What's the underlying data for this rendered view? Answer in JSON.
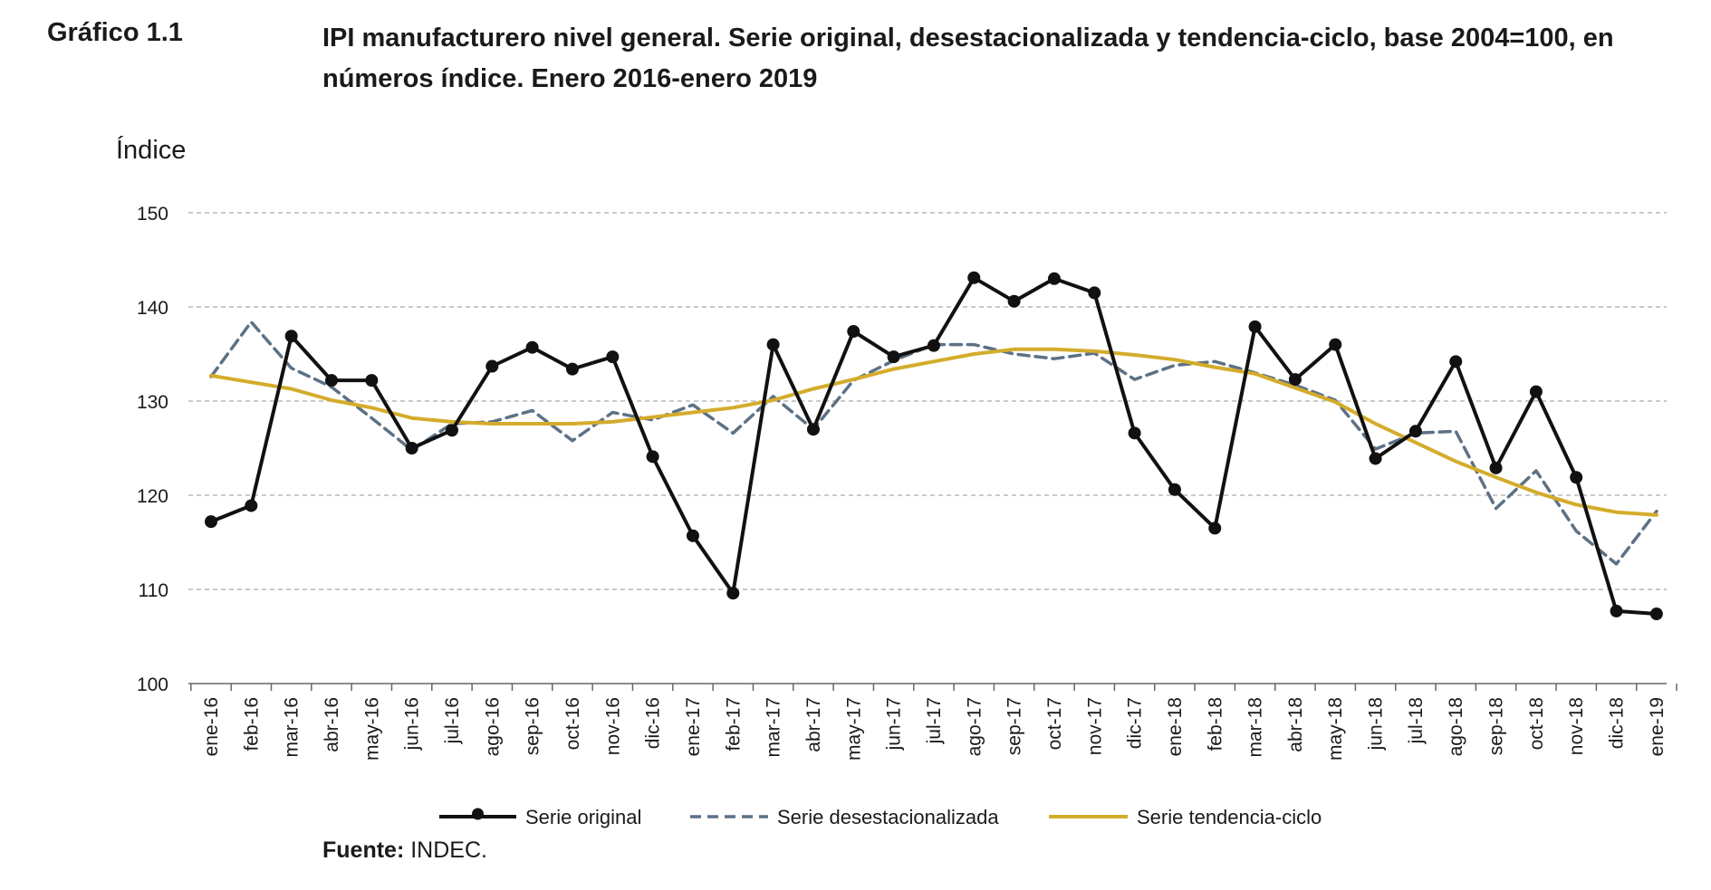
{
  "header": {
    "label": "Gráfico 1.1",
    "title_line1": "IPI manufacturero nivel general. Serie original, desestacionalizada y tendencia-ciclo, base 2004=100, en",
    "title_line2": "números índice. Enero 2016-enero 2019"
  },
  "footer": {
    "source_label": "Fuente:",
    "source_value": " INDEC."
  },
  "colors": {
    "original": "#111111",
    "desestacionalizada": "#5c7185",
    "tendencia": "#d4ac2b",
    "grid": "#b8b8b8",
    "axis": "#666666"
  },
  "chart_data": {
    "type": "line",
    "ylabel": "Índice",
    "ylim": [
      100,
      150
    ],
    "yticks": [
      100,
      110,
      120,
      130,
      140,
      150
    ],
    "grid": true,
    "legend_position": "bottom",
    "categories": [
      "ene-16",
      "feb-16",
      "mar-16",
      "abr-16",
      "may-16",
      "jun-16",
      "jul-16",
      "ago-16",
      "sep-16",
      "oct-16",
      "nov-16",
      "dic-16",
      "ene-17",
      "feb-17",
      "mar-17",
      "abr-17",
      "may-17",
      "jun-17",
      "jul-17",
      "ago-17",
      "sep-17",
      "oct-17",
      "nov-17",
      "dic-17",
      "ene-18",
      "feb-18",
      "mar-18",
      "abr-18",
      "may-18",
      "jun-18",
      "jul-18",
      "ago-18",
      "sep-18",
      "oct-18",
      "nov-18",
      "dic-18",
      "ene-19"
    ],
    "series": [
      {
        "key": "original",
        "name": "Serie original",
        "style": "solid-markers",
        "values": [
          117.2,
          118.9,
          136.9,
          132.2,
          132.2,
          125.0,
          126.9,
          133.7,
          135.7,
          133.4,
          134.7,
          124.1,
          115.7,
          109.6,
          136.0,
          127.0,
          137.4,
          134.7,
          135.9,
          143.1,
          140.6,
          143.0,
          141.5,
          126.6,
          120.6,
          116.5,
          137.9,
          132.3,
          136.0,
          123.9,
          126.8,
          134.2,
          122.9,
          131.0,
          121.9,
          107.7,
          107.4
        ]
      },
      {
        "key": "desestacionalizada",
        "name": "Serie desestacionalizada",
        "style": "dashed",
        "values": [
          132.6,
          138.4,
          133.5,
          131.5,
          128.2,
          124.8,
          127.6,
          127.8,
          129.0,
          125.8,
          128.8,
          128.0,
          129.6,
          126.6,
          130.5,
          127.0,
          132.2,
          134.3,
          136.0,
          136.0,
          135.0,
          134.5,
          135.1,
          132.3,
          133.8,
          134.2,
          133.0,
          131.7,
          130.1,
          124.9,
          126.6,
          126.8,
          118.6,
          122.6,
          116.2,
          112.7,
          118.3
        ]
      },
      {
        "key": "tendencia",
        "name": "Serie tendencia-ciclo",
        "style": "solid",
        "values": [
          132.7,
          132.0,
          131.3,
          130.1,
          129.3,
          128.2,
          127.8,
          127.6,
          127.6,
          127.6,
          127.8,
          128.3,
          128.8,
          129.3,
          130.1,
          131.3,
          132.3,
          133.4,
          134.2,
          135.0,
          135.5,
          135.5,
          135.3,
          134.9,
          134.4,
          133.6,
          132.9,
          131.4,
          129.9,
          127.6,
          125.6,
          123.6,
          121.9,
          120.3,
          119.0,
          118.2,
          117.9
        ]
      }
    ]
  }
}
